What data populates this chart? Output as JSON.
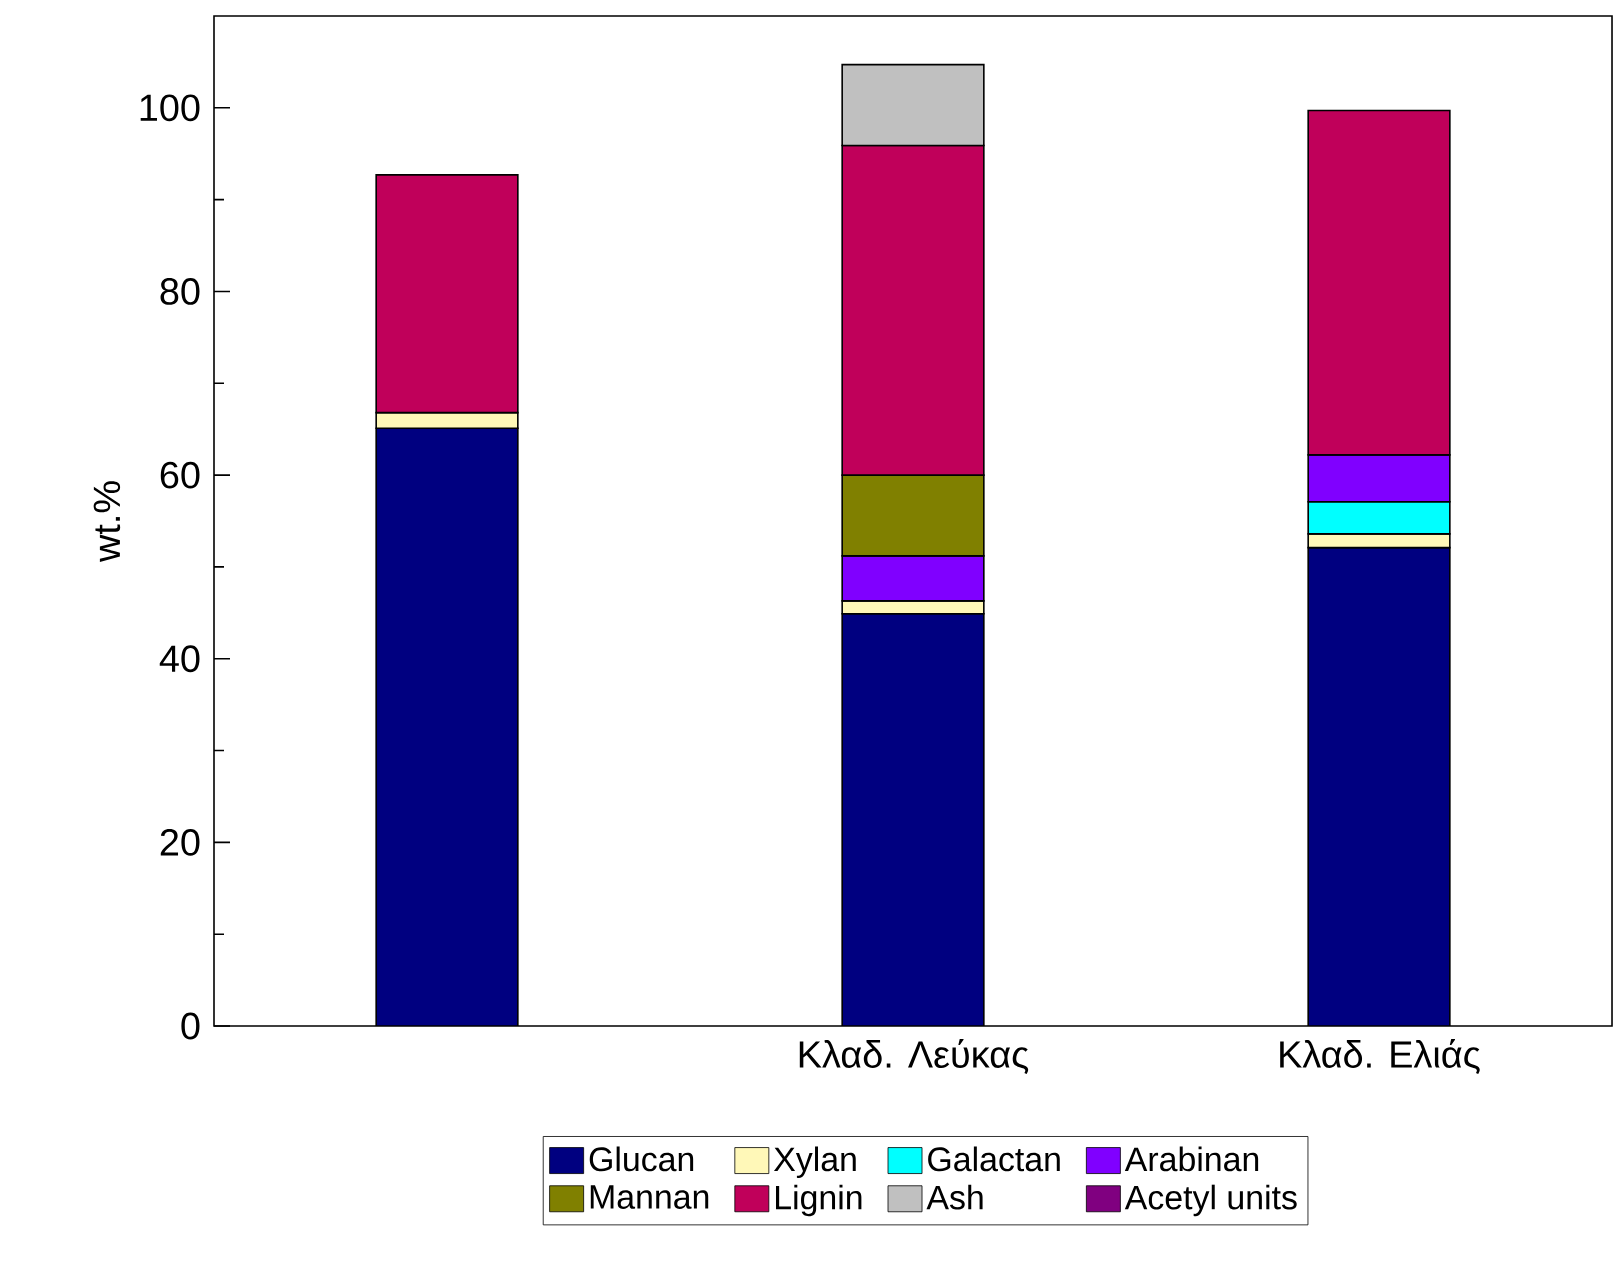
{
  "chart_data": {
    "type": "bar",
    "stacked": true,
    "ylabel": "wt.%",
    "categories": [
      null,
      "Κλαδ. Λεύκας",
      "Κλαδ. Ελιάς"
    ],
    "ylim": [
      0,
      110
    ],
    "yticks": [
      0,
      20,
      40,
      60,
      80,
      100
    ],
    "legend": "bottom",
    "series": [
      {
        "name": "Glucan",
        "color": "#000080",
        "values": [
          65.1,
          44.9,
          52.1
        ]
      },
      {
        "name": "Xylan",
        "color": "#fff8b8",
        "values": [
          1.7,
          1.4,
          1.5
        ]
      },
      {
        "name": "Galactan",
        "color": "#00ffff",
        "values": [
          null,
          null,
          3.5
        ]
      },
      {
        "name": "Arabinan",
        "color": "#8000ff",
        "values": [
          null,
          4.9,
          5.1
        ]
      },
      {
        "name": "Mannan",
        "color": "#808000",
        "values": [
          null,
          8.8,
          null
        ]
      },
      {
        "name": "Lignin",
        "color": "#c0005a",
        "values": [
          25.9,
          35.9,
          37.5
        ]
      },
      {
        "name": "Ash",
        "color": "#c0c0c0",
        "values": [
          null,
          8.8,
          null
        ]
      },
      {
        "name": "Acetyl units",
        "color": "#800080",
        "values": [
          null,
          null,
          null
        ]
      }
    ]
  }
}
